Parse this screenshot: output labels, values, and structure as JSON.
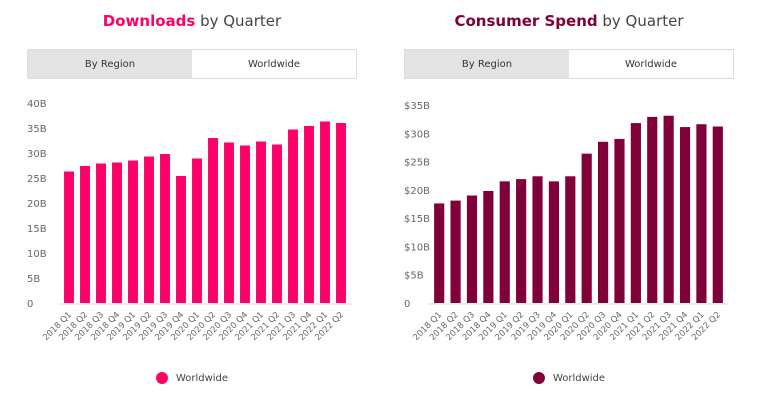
{
  "chart_data": [
    {
      "type": "bar",
      "title_bold": "Downloads",
      "title_rest": " by Quarter",
      "tabs": [
        "By Region",
        "Worldwide"
      ],
      "active_tab": "Worldwide",
      "color": "#ff0066",
      "categories": [
        "2018 Q1",
        "2018 Q2",
        "2018 Q3",
        "2018 Q4",
        "2019 Q1",
        "2019 Q2",
        "2019 Q3",
        "2019 Q4",
        "2020 Q1",
        "2020 Q2",
        "2020 Q3",
        "2020 Q4",
        "2021 Q1",
        "2021 Q2",
        "2021 Q3",
        "2021 Q4",
        "2022 Q1",
        "2022 Q2"
      ],
      "series": [
        {
          "name": "Worldwide",
          "values": [
            26.3,
            27.4,
            27.9,
            28.1,
            28.5,
            29.3,
            29.8,
            25.4,
            28.9,
            33.0,
            32.1,
            31.5,
            32.3,
            31.7,
            34.7,
            35.4,
            36.3,
            36.0
          ]
        }
      ],
      "yticks": [
        "0",
        "5B",
        "10B",
        "15B",
        "20B",
        "25B",
        "30B",
        "35B",
        "40B"
      ],
      "ylim": [
        0,
        40
      ],
      "grid": false,
      "legend": "bottom"
    },
    {
      "type": "bar",
      "title_bold": "Consumer Spend",
      "title_rest": " by Quarter",
      "tabs": [
        "By Region",
        "Worldwide"
      ],
      "active_tab": "Worldwide",
      "color": "#80003a",
      "categories": [
        "2018 Q1",
        "2018 Q2",
        "2018 Q3",
        "2018 Q4",
        "2019 Q1",
        "2019 Q2",
        "2019 Q3",
        "2019 Q4",
        "2020 Q1",
        "2020 Q2",
        "2020 Q3",
        "2020 Q4",
        "2021 Q1",
        "2021 Q2",
        "2021 Q3",
        "2021 Q4",
        "2022 Q1",
        "2022 Q2"
      ],
      "series": [
        {
          "name": "Worldwide",
          "values": [
            17.6,
            18.1,
            19.0,
            19.8,
            21.5,
            21.9,
            22.4,
            21.5,
            22.4,
            26.4,
            28.5,
            29.0,
            31.8,
            32.9,
            33.1,
            31.1,
            31.6,
            31.2
          ]
        }
      ],
      "yticks": [
        "0",
        "$5B",
        "$10B",
        "$15B",
        "$20B",
        "$25B",
        "$30B",
        "$35B"
      ],
      "ylim": [
        0,
        35
      ],
      "grid": false,
      "legend": "bottom"
    }
  ]
}
